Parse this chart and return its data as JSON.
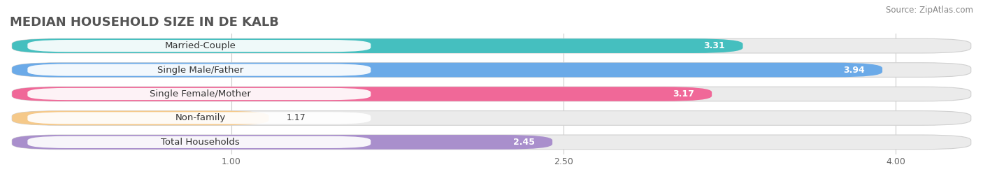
{
  "title": "MEDIAN HOUSEHOLD SIZE IN DE KALB",
  "source": "Source: ZipAtlas.com",
  "categories": [
    "Married-Couple",
    "Single Male/Father",
    "Single Female/Mother",
    "Non-family",
    "Total Households"
  ],
  "values": [
    3.31,
    3.94,
    3.17,
    1.17,
    2.45
  ],
  "bar_colors": [
    "#45bfbf",
    "#6baae8",
    "#f06898",
    "#f5c98a",
    "#a98fcc"
  ],
  "xlim_left": 0.0,
  "xlim_right": 4.35,
  "data_min": 1.0,
  "data_max": 4.0,
  "xticks": [
    1.0,
    2.5,
    4.0
  ],
  "xtick_labels": [
    "1.00",
    "2.50",
    "4.00"
  ],
  "background_color": "#ffffff",
  "bar_bg_color": "#ebebeb",
  "title_fontsize": 13,
  "label_fontsize": 9.5,
  "value_fontsize": 9.0,
  "source_fontsize": 8.5
}
